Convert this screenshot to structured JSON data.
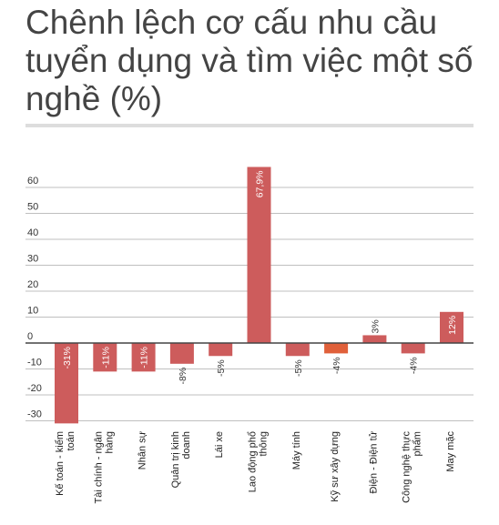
{
  "title": "Chênh lệch cơ cấu nhu cầu tuyển dụng và tìm việc một số nghề (%)",
  "chart_data": {
    "type": "bar",
    "title": "Chênh lệch cơ cấu nhu cầu tuyển dụng và tìm việc một số nghề (%)",
    "xlabel": "",
    "ylabel": "",
    "ylim": [
      -30,
      60
    ],
    "yticks": [
      60,
      50,
      40,
      30,
      20,
      10,
      0,
      -10,
      -20,
      -30
    ],
    "grid": true,
    "categories": [
      [
        "Kế toán - kiểm",
        "toán"
      ],
      [
        "Tài chính - ngân",
        "hàng"
      ],
      [
        "Nhân sự"
      ],
      [
        "Quản trị kinh",
        "doanh"
      ],
      [
        "Lái xe"
      ],
      [
        "Lao động phổ",
        "thông"
      ],
      [
        "Máy tính"
      ],
      [
        "Kỹ sư xây dựng"
      ],
      [
        "Điện - Điện tử"
      ],
      [
        "Công nghệ thực",
        "phẩm"
      ],
      [
        "May mặc"
      ]
    ],
    "values": [
      -31,
      -11,
      -11,
      -8,
      -5,
      67.9,
      -5,
      -4,
      3,
      -4,
      12
    ],
    "data_labels": [
      "-31%",
      "-11%",
      "-11%",
      "-8%",
      "-5%",
      "67,9%",
      "-5%",
      "-4%",
      "3%",
      "-4%",
      "12%"
    ],
    "colors": {
      "bar": "#cd5c5c",
      "highlight_bar": "#e0603a",
      "grid": "#bfbfbf",
      "zero_line": "#444444"
    },
    "highlight_index": 7
  }
}
